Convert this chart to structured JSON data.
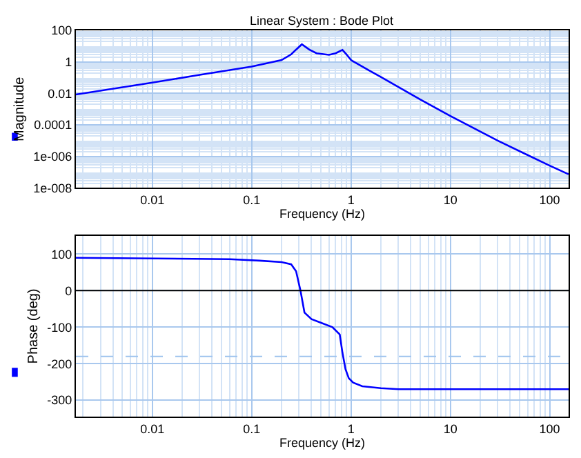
{
  "chart_data": [
    {
      "type": "line",
      "title": "Linear System : Bode Plot",
      "xlabel": "Frequency (Hz)",
      "log": "xy",
      "grid": true,
      "x": [
        0.0017,
        0.01,
        0.03,
        0.1,
        0.2,
        0.25,
        0.28,
        0.32,
        0.38,
        0.45,
        0.6,
        0.7,
        0.82,
        0.9,
        1,
        1.5,
        2,
        5,
        10,
        30,
        100,
        155
      ],
      "series": [
        {
          "name": "Magnitude",
          "color": "#0000ff",
          "values": [
            0.0085,
            0.048,
            0.15,
            0.5,
            1.3,
            3,
            6,
            13,
            6,
            3.5,
            2.8,
            3.5,
            5.7,
            3,
            1.3,
            0.3,
            0.11,
            0.004,
            0.00037,
            1e-05,
            2.6e-07,
            7.4e-08
          ]
        }
      ],
      "xlim": [
        0.0017,
        155
      ],
      "ylim": [
        1e-08,
        100
      ],
      "xticks": [
        0.01,
        0.1,
        1,
        10,
        100
      ],
      "yticks": [
        100,
        1,
        0.01,
        0.0001,
        {
          "value": 1e-06,
          "label": "1e-006"
        },
        {
          "value": 1e-08,
          "label": "1e-008"
        }
      ]
    },
    {
      "type": "line",
      "xlabel": "Frequency (Hz)",
      "log": "x",
      "grid": true,
      "x": [
        0.0017,
        0.06,
        0.12,
        0.2,
        0.25,
        0.28,
        0.31,
        0.34,
        0.4,
        0.5,
        0.65,
        0.77,
        0.82,
        0.88,
        0.95,
        1.05,
        1.3,
        2,
        3,
        155
      ],
      "series": [
        {
          "name": "Phase (deg)",
          "color": "#0000ff",
          "values": [
            90,
            86,
            82,
            78,
            72,
            53,
            0,
            -60,
            -78,
            -88,
            -100,
            -120,
            -170,
            -215,
            -240,
            -252,
            -262,
            -267,
            -270,
            -270
          ]
        }
      ],
      "xlim": [
        0.0017,
        155
      ],
      "ylim": [
        -345,
        150
      ],
      "xticks": [
        0.01,
        0.1,
        1,
        10,
        100
      ],
      "yticks": [
        100,
        0,
        -100,
        -200,
        -300
      ],
      "ref_lines": [
        {
          "axis": "y",
          "value": 0,
          "color": "#000000",
          "line_style": "solid"
        },
        {
          "axis": "y",
          "value": -180,
          "color": "#9ec3ee",
          "line_style": "dashed"
        }
      ]
    }
  ]
}
